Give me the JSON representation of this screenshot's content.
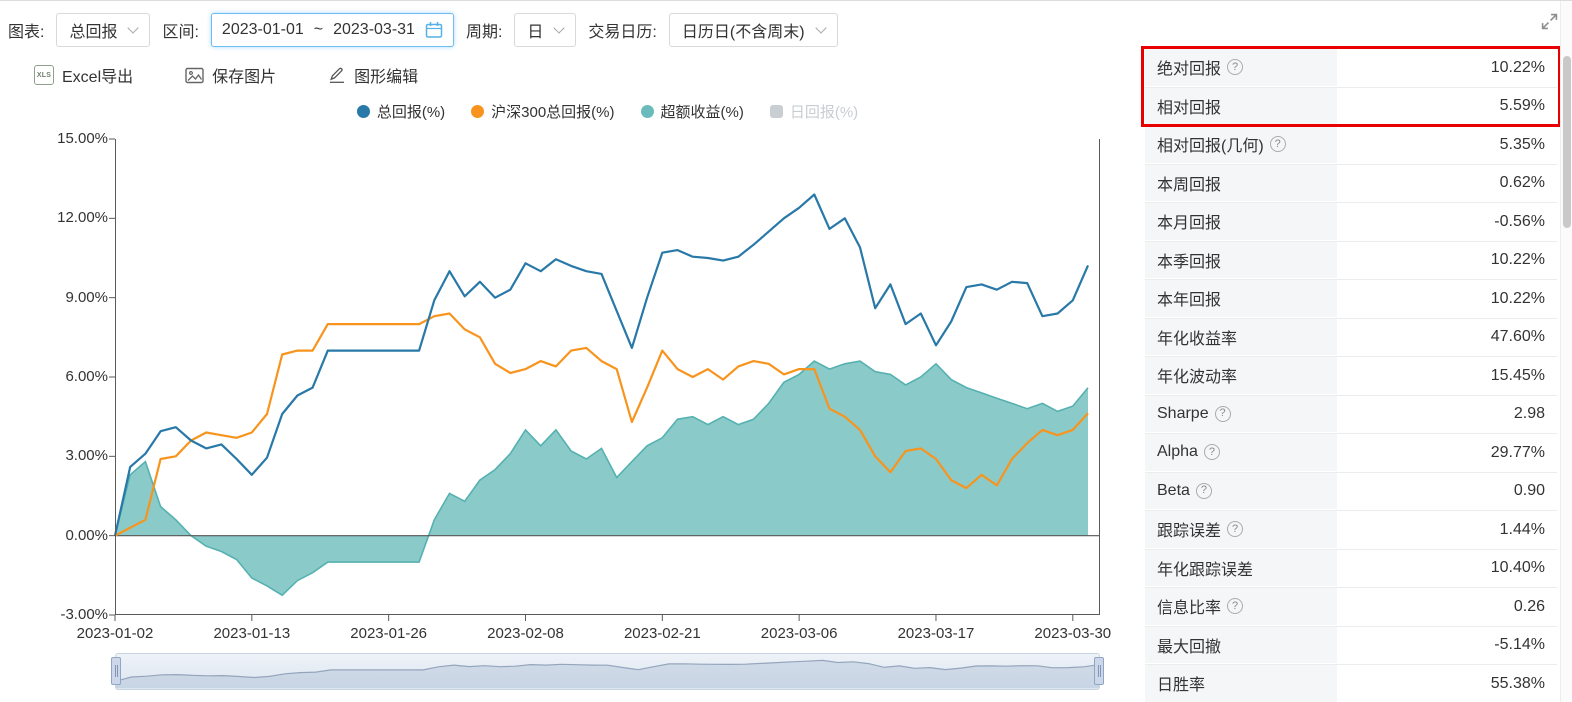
{
  "toolbar": {
    "chart_label": "图表:",
    "chart_select": "总回报",
    "range_label": "区间:",
    "range_start": "2023-01-01",
    "range_separator": "~",
    "range_end": "2023-03-31",
    "period_label": "周期:",
    "period_select": "日",
    "calendar_label": "交易日历:",
    "calendar_select": "日历日(不含周末)"
  },
  "actions": {
    "xls_badge": "XLS",
    "excel_export": "Excel导出",
    "save_image": "保存图片",
    "edit_chart": "图形编辑"
  },
  "legend": [
    {
      "key": "total-return",
      "label": "总回报(%)",
      "color": "#2878a8",
      "shape": "circle",
      "enabled": true
    },
    {
      "key": "csi300-return",
      "label": "沪深300总回报(%)",
      "color": "#f8941d",
      "shape": "circle",
      "enabled": true
    },
    {
      "key": "excess-return",
      "label": "超额收益(%)",
      "color": "#69bcbb",
      "shape": "circle",
      "enabled": true
    },
    {
      "key": "daily-return",
      "label": "日回报(%)",
      "color": "#c9ced3",
      "shape": "square",
      "enabled": false
    }
  ],
  "chart_data": {
    "type": "line",
    "title": "",
    "xlabel": "",
    "ylabel": "",
    "ylim": [
      -3,
      15
    ],
    "grid": false,
    "legend_position": "top",
    "yticks": [
      "15.00%",
      "12.00%",
      "9.00%",
      "6.00%",
      "3.00%",
      "0.00%",
      "-3.00%"
    ],
    "xtick_indices": [
      0,
      9,
      18,
      27,
      36,
      45,
      54,
      63
    ],
    "xtick_labels": [
      "2023-01-02",
      "2023-01-13",
      "2023-01-26",
      "2023-02-08",
      "2023-02-21",
      "2023-03-06",
      "2023-03-17",
      "2023-03-30"
    ],
    "x": [
      "2023-01-02",
      "2023-01-03",
      "2023-01-04",
      "2023-01-05",
      "2023-01-06",
      "2023-01-09",
      "2023-01-10",
      "2023-01-11",
      "2023-01-12",
      "2023-01-13",
      "2023-01-16",
      "2023-01-17",
      "2023-01-18",
      "2023-01-19",
      "2023-01-20",
      "2023-01-23",
      "2023-01-24",
      "2023-01-25",
      "2023-01-26",
      "2023-01-27",
      "2023-01-30",
      "2023-01-31",
      "2023-02-01",
      "2023-02-02",
      "2023-02-03",
      "2023-02-06",
      "2023-02-07",
      "2023-02-08",
      "2023-02-09",
      "2023-02-10",
      "2023-02-13",
      "2023-02-14",
      "2023-02-15",
      "2023-02-16",
      "2023-02-17",
      "2023-02-20",
      "2023-02-21",
      "2023-02-22",
      "2023-02-23",
      "2023-02-24",
      "2023-02-27",
      "2023-02-28",
      "2023-03-01",
      "2023-03-02",
      "2023-03-03",
      "2023-03-06",
      "2023-03-07",
      "2023-03-08",
      "2023-03-09",
      "2023-03-10",
      "2023-03-13",
      "2023-03-14",
      "2023-03-15",
      "2023-03-16",
      "2023-03-17",
      "2023-03-20",
      "2023-03-21",
      "2023-03-22",
      "2023-03-23",
      "2023-03-24",
      "2023-03-27",
      "2023-03-28",
      "2023-03-29",
      "2023-03-30",
      "2023-03-31"
    ],
    "series": [
      {
        "name": "总回报(%)",
        "type": "line",
        "color": "#2878a8",
        "values": [
          0.0,
          2.6,
          3.1,
          3.95,
          4.1,
          3.6,
          3.3,
          3.45,
          2.9,
          2.3,
          2.95,
          4.6,
          5.3,
          5.6,
          7.0,
          7.0,
          7.0,
          7.0,
          7.0,
          7.0,
          7.0,
          8.9,
          10.0,
          9.05,
          9.6,
          9.0,
          9.3,
          10.3,
          10.0,
          10.45,
          10.2,
          10.0,
          9.9,
          8.5,
          7.1,
          9.0,
          10.7,
          10.8,
          10.55,
          10.5,
          10.4,
          10.55,
          11.0,
          11.5,
          12.0,
          12.4,
          12.9,
          11.6,
          12.0,
          10.9,
          8.6,
          9.5,
          8.0,
          8.4,
          7.2,
          8.1,
          9.4,
          9.5,
          9.3,
          9.6,
          9.55,
          8.3,
          8.4,
          8.9,
          10.22
        ]
      },
      {
        "name": "沪深300总回报(%)",
        "type": "line",
        "color": "#f8941d",
        "values": [
          0.0,
          0.3,
          0.6,
          2.9,
          3.0,
          3.6,
          3.9,
          3.8,
          3.7,
          3.9,
          4.6,
          6.85,
          7.0,
          7.0,
          8.0,
          8.0,
          8.0,
          8.0,
          8.0,
          8.0,
          8.0,
          8.3,
          8.4,
          7.8,
          7.5,
          6.5,
          6.15,
          6.3,
          6.6,
          6.4,
          7.0,
          7.1,
          6.6,
          6.3,
          4.3,
          5.6,
          7.0,
          6.3,
          6.0,
          6.3,
          5.9,
          6.4,
          6.6,
          6.5,
          6.1,
          6.3,
          6.3,
          4.8,
          4.5,
          4.0,
          3.0,
          2.4,
          3.2,
          3.3,
          2.9,
          2.1,
          1.8,
          2.3,
          1.9,
          2.9,
          3.5,
          4.0,
          3.8,
          4.0,
          4.63
        ]
      },
      {
        "name": "超额收益(%)",
        "type": "area",
        "color": "#69bcbb",
        "values": [
          0.0,
          2.3,
          2.8,
          1.1,
          0.6,
          0.0,
          -0.4,
          -0.6,
          -0.9,
          -1.6,
          -1.9,
          -2.25,
          -1.7,
          -1.4,
          -1.0,
          -1.0,
          -1.0,
          -1.0,
          -1.0,
          -1.0,
          -1.0,
          0.6,
          1.6,
          1.3,
          2.1,
          2.5,
          3.1,
          4.0,
          3.4,
          4.0,
          3.2,
          2.9,
          3.3,
          2.2,
          2.8,
          3.4,
          3.7,
          4.4,
          4.5,
          4.2,
          4.5,
          4.2,
          4.4,
          5.0,
          5.8,
          6.1,
          6.6,
          6.3,
          6.5,
          6.6,
          6.2,
          6.1,
          5.7,
          6.0,
          6.5,
          5.9,
          5.6,
          5.4,
          5.2,
          5.0,
          4.8,
          5.0,
          4.7,
          4.9,
          5.59
        ]
      },
      {
        "name": "日回报(%)",
        "type": "bar",
        "color": "#c9ced3",
        "visible": false,
        "values": []
      }
    ]
  },
  "metrics": {
    "rows": [
      {
        "label": "绝对回报",
        "help": true,
        "value": "10.22%",
        "highlighted": true
      },
      {
        "label": "相对回报",
        "help": false,
        "value": "5.59%",
        "highlighted": true
      },
      {
        "label": "相对回报(几何)",
        "help": true,
        "value": "5.35%"
      },
      {
        "label": "本周回报",
        "help": false,
        "value": "0.62%"
      },
      {
        "label": "本月回报",
        "help": false,
        "value": "-0.56%"
      },
      {
        "label": "本季回报",
        "help": false,
        "value": "10.22%"
      },
      {
        "label": "本年回报",
        "help": false,
        "value": "10.22%"
      },
      {
        "label": "年化收益率",
        "help": false,
        "value": "47.60%"
      },
      {
        "label": "年化波动率",
        "help": false,
        "value": "15.45%"
      },
      {
        "label": "Sharpe",
        "help": true,
        "value": "2.98"
      },
      {
        "label": "Alpha",
        "help": true,
        "value": "29.77%"
      },
      {
        "label": "Beta",
        "help": true,
        "value": "0.90"
      },
      {
        "label": "跟踪误差",
        "help": true,
        "value": "1.44%"
      },
      {
        "label": "年化跟踪误差",
        "help": false,
        "value": "10.40%"
      },
      {
        "label": "信息比率",
        "help": true,
        "value": "0.26"
      },
      {
        "label": "最大回撤",
        "help": false,
        "value": "-5.14%"
      },
      {
        "label": "日胜率",
        "help": false,
        "value": "55.38%"
      }
    ],
    "help_glyph": "?"
  },
  "colors": {
    "total_return": "#2878a8",
    "benchmark": "#f8941d",
    "excess_fill": "#69bcbb",
    "disabled": "#c9ced3",
    "highlight_border": "#e80000",
    "focus_border": "#70bdf2",
    "axis": "#5a5a5a"
  }
}
